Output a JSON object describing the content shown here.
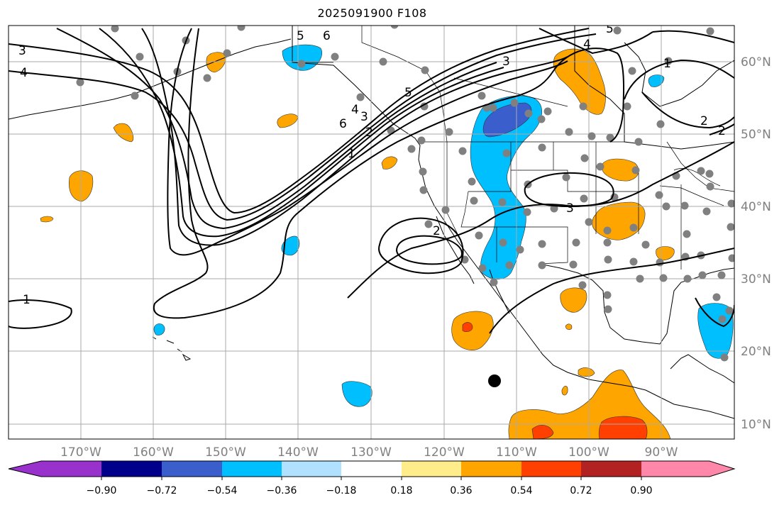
{
  "title": "2025091900 F108",
  "map": {
    "longitude_labels": [
      "170°W",
      "160°W",
      "150°W",
      "140°W",
      "130°W",
      "120°W",
      "110°W",
      "100°W",
      "90°W"
    ],
    "latitude_labels": [
      "60°N",
      "50°N",
      "40°N",
      "30°N",
      "20°N",
      "10°N"
    ],
    "contour_labels": [
      "3",
      "4",
      "5",
      "6",
      "3",
      "4",
      "5",
      "6",
      "5",
      "4",
      "3",
      "1",
      "2",
      "2",
      "3",
      "1",
      "2",
      "2",
      "1"
    ],
    "marker": "storm-center"
  },
  "colorbar": {
    "colors": [
      "#9932CC",
      "#00008B",
      "#3A5FCD",
      "#00BFFF",
      "#B0E2FF",
      "#FFFFFF",
      "#FFEC8B",
      "#FFA500",
      "#FF4000",
      "#B22222",
      "#FF88AA"
    ],
    "tick_labels": [
      "−0.90",
      "−0.72",
      "−0.54",
      "−0.36",
      "−0.18",
      "0.18",
      "0.36",
      "0.54",
      "0.72",
      "0.90"
    ]
  }
}
